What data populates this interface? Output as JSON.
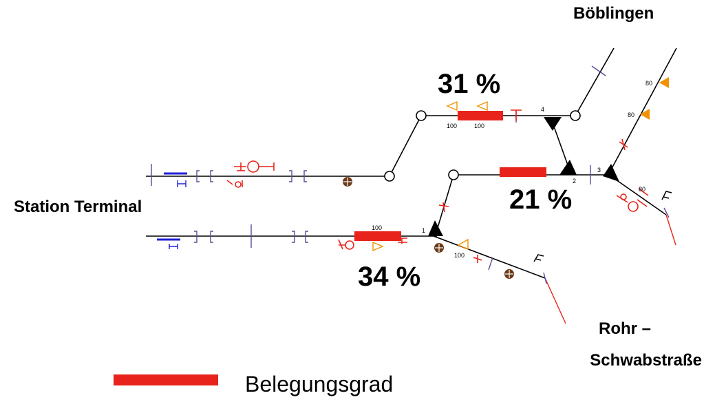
{
  "stations": {
    "boblingen": "Böblingen",
    "terminal": "Station Terminal",
    "rohr_line1": "Rohr –",
    "rohr_line2": "Schwabstraße"
  },
  "occupancy": {
    "upper": "31 %",
    "middle": "21 %",
    "lower": "34 %"
  },
  "legend": {
    "label": "Belegungsgrad",
    "color": "#e8231b"
  },
  "colors": {
    "track": "#000000",
    "occupancy_bar": "#e8231b",
    "signal_red": "#e8231b",
    "signal_orange": "#f39200",
    "buffer_blue": "#1f1fd6",
    "joint_purple": "#5a4a9a",
    "marker_brown": "#6b3a1a"
  },
  "track_marks": {
    "speed_100": "100",
    "speed_80": "80",
    "track_1": "1",
    "track_2": "2",
    "track_3": "3",
    "track_4": "4"
  }
}
